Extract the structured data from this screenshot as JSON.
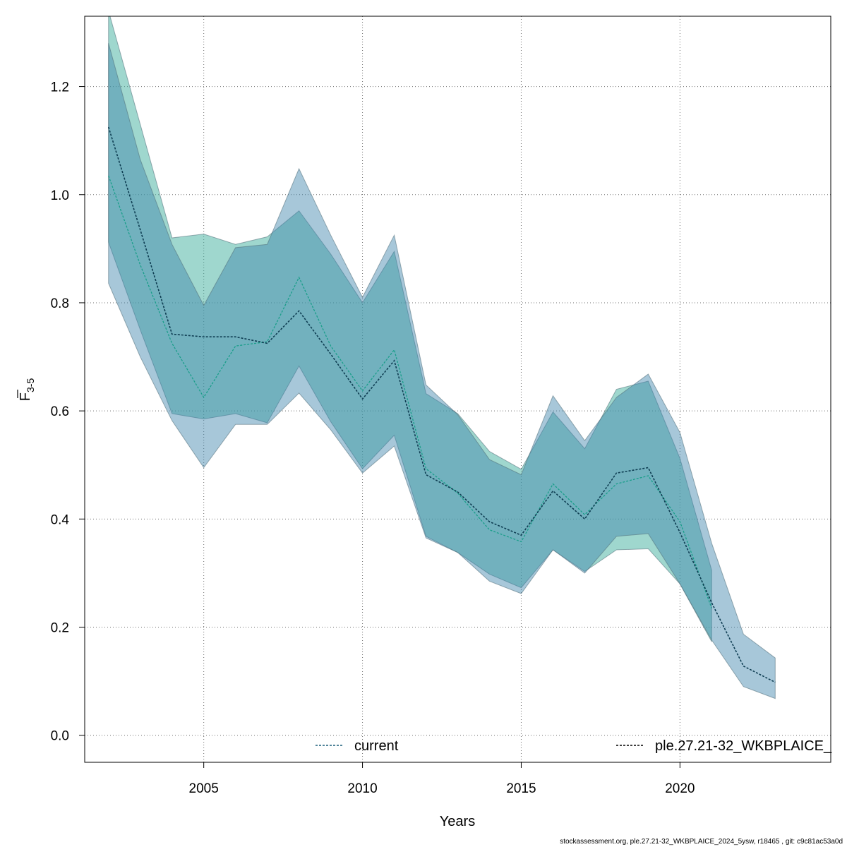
{
  "chart_data": {
    "type": "area",
    "xlabel": "Years",
    "ylabel": "F",
    "ylabel_subscript": "3-5",
    "xlim": [
      2001.25,
      2024.75
    ],
    "ylim": [
      -0.05,
      1.33
    ],
    "xticks": [
      2005,
      2010,
      2015,
      2020
    ],
    "yticks": [
      0.0,
      0.2,
      0.4,
      0.6,
      0.8,
      1.0,
      1.2
    ],
    "grid": true,
    "legend_position": "bottom",
    "x": [
      2002,
      2003,
      2004,
      2005,
      2006,
      2007,
      2008,
      2009,
      2010,
      2011,
      2012,
      2013,
      2014,
      2015,
      2016,
      2017,
      2018,
      2019,
      2020,
      2021,
      2022,
      2023
    ],
    "series": [
      {
        "name": "current",
        "color": "#1a9e8a",
        "band_color": "rgba(64,176,158,0.5)",
        "values": [
          1.035,
          0.87,
          0.725,
          0.625,
          0.72,
          0.728,
          0.847,
          0.72,
          0.637,
          0.713,
          0.493,
          0.448,
          0.38,
          0.358,
          0.465,
          0.408,
          0.465,
          0.48,
          0.395,
          0.235,
          null,
          null
        ],
        "lower": [
          0.912,
          0.75,
          0.595,
          0.585,
          0.595,
          0.578,
          0.683,
          0.58,
          0.493,
          0.555,
          0.368,
          0.338,
          0.298,
          0.273,
          0.343,
          0.303,
          0.343,
          0.345,
          0.28,
          0.173,
          null,
          null
        ],
        "upper": [
          1.34,
          1.13,
          0.92,
          0.927,
          0.908,
          0.922,
          0.97,
          0.89,
          0.8,
          0.895,
          0.632,
          0.595,
          0.525,
          0.492,
          0.598,
          0.53,
          0.64,
          0.655,
          0.512,
          0.305,
          null,
          null
        ]
      },
      {
        "name": "ple.27.21-32_WKBPLAICE_",
        "color": "#0e3d52",
        "band_color": "rgba(60,130,170,0.45)",
        "values": [
          1.125,
          0.935,
          0.742,
          0.737,
          0.737,
          0.725,
          0.785,
          0.705,
          0.622,
          0.693,
          0.482,
          0.45,
          0.395,
          0.37,
          0.452,
          0.4,
          0.485,
          0.495,
          0.375,
          0.245,
          0.128,
          0.098
        ],
        "lower": [
          0.836,
          0.7,
          0.582,
          0.495,
          0.575,
          0.575,
          0.633,
          0.565,
          0.485,
          0.535,
          0.365,
          0.338,
          0.285,
          0.262,
          0.343,
          0.3,
          0.368,
          0.373,
          0.28,
          0.176,
          0.09,
          0.068
        ],
        "upper": [
          1.28,
          1.065,
          0.908,
          0.795,
          0.902,
          0.908,
          1.048,
          0.925,
          0.81,
          0.925,
          0.648,
          0.593,
          0.51,
          0.482,
          0.628,
          0.545,
          0.625,
          0.668,
          0.56,
          0.355,
          0.187,
          0.143
        ]
      }
    ]
  },
  "footer": "stockassessment.org, ple.27.21-32_WKBPLAICE_2024_5ysw, r18465 , git: c9c81ac53a0d"
}
